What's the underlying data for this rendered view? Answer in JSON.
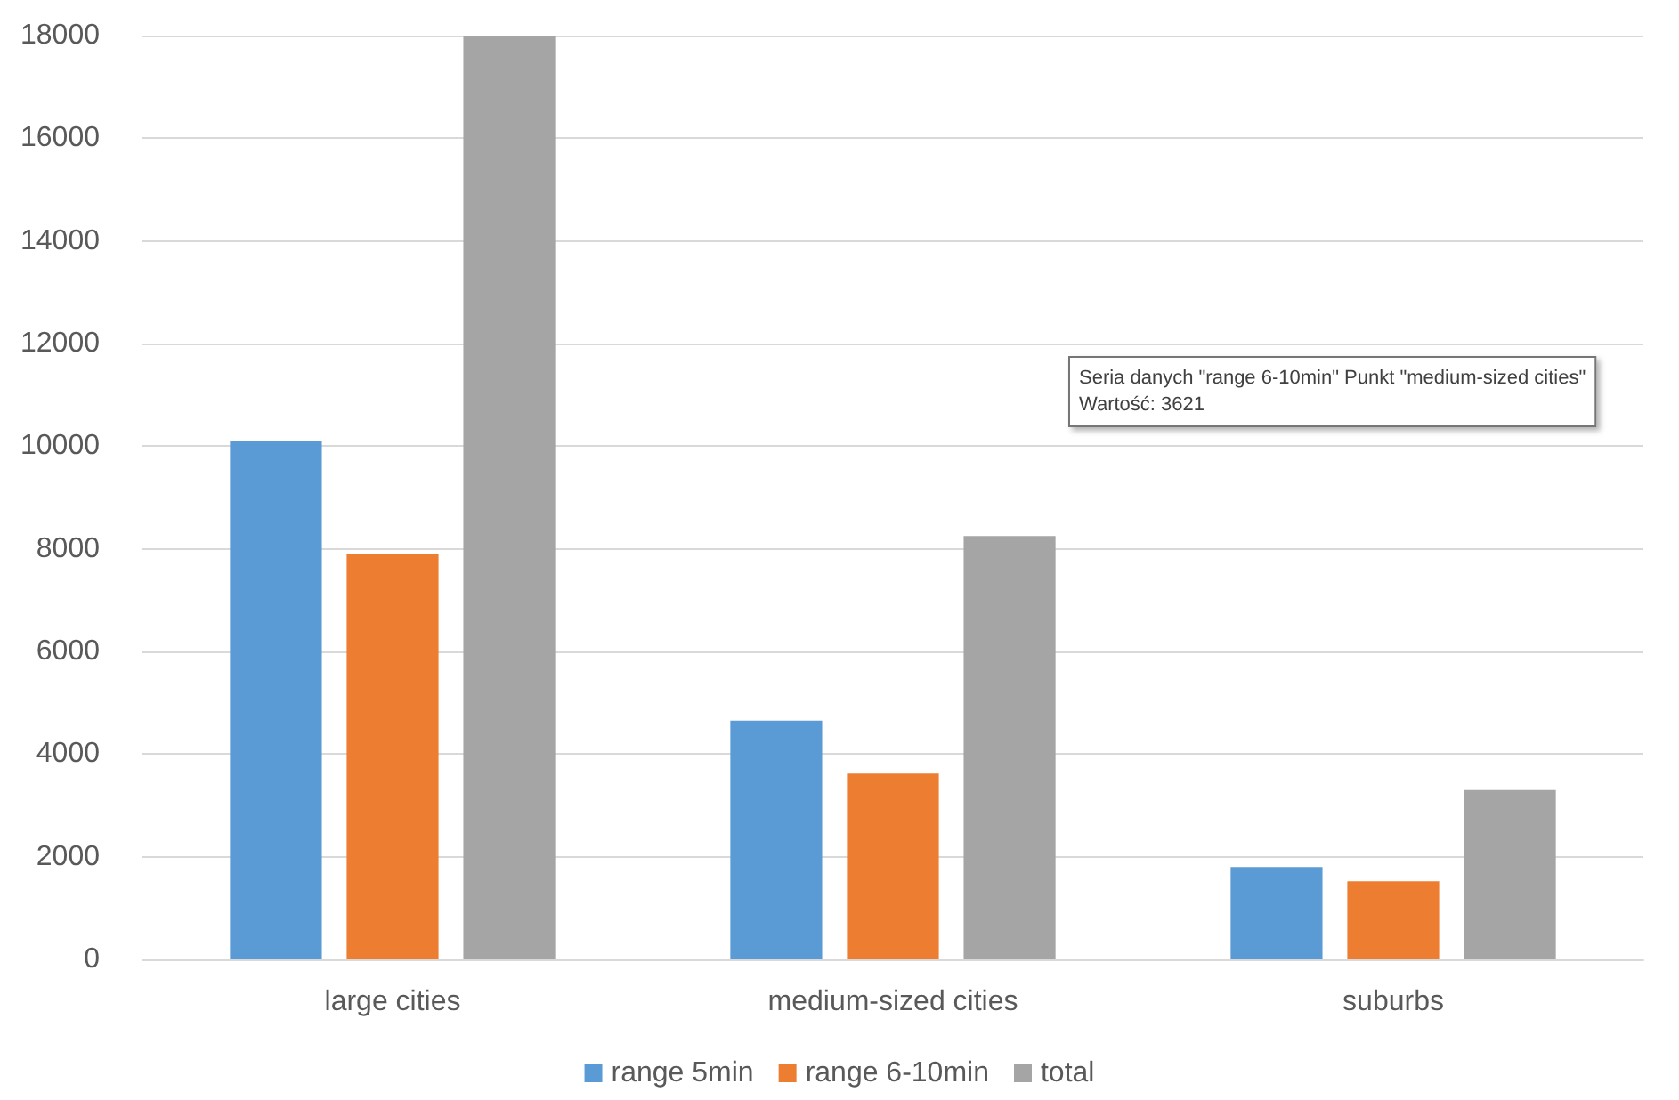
{
  "chart_data": {
    "type": "bar",
    "categories": [
      "large cities",
      "medium-sized cities",
      "suburbs"
    ],
    "series": [
      {
        "name": "range 5min",
        "color": "#5b9bd5",
        "values": [
          10100,
          4650,
          1800
        ]
      },
      {
        "name": "range 6-10min",
        "color": "#ed7d31",
        "values": [
          7900,
          3621,
          1520
        ]
      },
      {
        "name": "total",
        "color": "#a5a5a5",
        "values": [
          18000,
          8250,
          3300
        ]
      }
    ],
    "ylim": [
      0,
      18000
    ],
    "yticks": [
      0,
      2000,
      4000,
      6000,
      8000,
      10000,
      12000,
      14000,
      16000,
      18000
    ],
    "grid": "y",
    "legend": "bottom",
    "annotations": [
      "Seria danych \"range 6-10min\" Punkt \"medium-sized cities\"\nWartość: 3621"
    ]
  }
}
